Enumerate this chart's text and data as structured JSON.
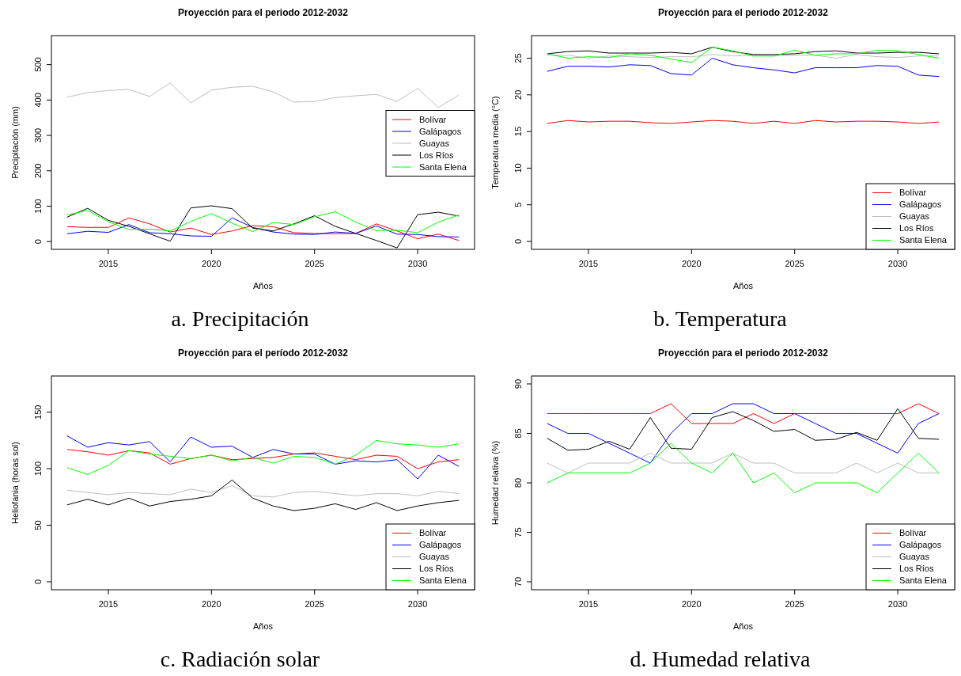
{
  "chart_data": [
    {
      "type": "line",
      "title": "Proyección para el periodo 2012-2032",
      "xlabel": "Años",
      "ylabel": "Precipitación (mm)",
      "annotations": [
        "a. Precipitación"
      ],
      "x": [
        2013,
        2014,
        2015,
        2016,
        2017,
        2018,
        2019,
        2020,
        2021,
        2022,
        2023,
        2024,
        2025,
        2026,
        2027,
        2028,
        2029,
        2030,
        2031,
        2032
      ],
      "xlim": [
        2012.24,
        2032.76
      ],
      "ylim": [
        -22,
        582
      ],
      "xticks": [
        2015,
        2020,
        2025,
        2030
      ],
      "yticks": [
        0,
        100,
        200,
        300,
        400,
        500
      ],
      "legend": "right",
      "series": [
        {
          "name": "Bolívar",
          "color": "#ff0000",
          "values": [
            42,
            40,
            40,
            67,
            50,
            27,
            38,
            20,
            30,
            45,
            42,
            25,
            23,
            22,
            23,
            50,
            30,
            8,
            21,
            3
          ]
        },
        {
          "name": "Galápagos",
          "color": "#0000ff",
          "values": [
            22,
            29,
            26,
            48,
            25,
            22,
            16,
            15,
            67,
            40,
            27,
            21,
            20,
            27,
            23,
            44,
            21,
            20,
            14,
            13
          ]
        },
        {
          "name": "Guayas",
          "color": "#bebebe",
          "values": [
            408,
            421,
            427,
            430,
            410,
            448,
            392,
            428,
            436,
            439,
            423,
            394,
            396,
            407,
            412,
            416,
            396,
            433,
            379,
            414
          ]
        },
        {
          "name": "Los Ríos",
          "color": "#000000",
          "values": [
            69,
            94,
            60,
            43,
            22,
            1,
            95,
            101,
            93,
            38,
            30,
            50,
            73,
            43,
            23,
            3,
            -18,
            76,
            83,
            72
          ]
        },
        {
          "name": "Santa Elena",
          "color": "#00ff00",
          "values": [
            75,
            88,
            56,
            34,
            35,
            30,
            57,
            79,
            52,
            28,
            54,
            48,
            70,
            84,
            55,
            31,
            32,
            25,
            55,
            75
          ]
        }
      ]
    },
    {
      "type": "line",
      "title": "Proyección para el periodo 2012-2032",
      "xlabel": "Años",
      "ylabel": "Temperatura media (°C)",
      "annotations": [
        "b. Temperatura"
      ],
      "x": [
        2013,
        2014,
        2015,
        2016,
        2017,
        2018,
        2019,
        2020,
        2021,
        2022,
        2023,
        2024,
        2025,
        2026,
        2027,
        2028,
        2029,
        2030,
        2031,
        2032
      ],
      "xlim": [
        2012.24,
        2032.76
      ],
      "ylim": [
        -1.08,
        28.08
      ],
      "xticks": [
        2015,
        2020,
        2025,
        2030
      ],
      "yticks": [
        0,
        5,
        10,
        15,
        20,
        25
      ],
      "legend": "bottom right",
      "series": [
        {
          "name": "Bolívar",
          "color": "#ff0000",
          "values": [
            16.1,
            16.5,
            16.3,
            16.4,
            16.4,
            16.2,
            16.1,
            16.3,
            16.5,
            16.4,
            16.1,
            16.4,
            16.1,
            16.5,
            16.3,
            16.4,
            16.4,
            16.3,
            16.1,
            16.3
          ]
        },
        {
          "name": "Galápagos",
          "color": "#0000ff",
          "values": [
            23.2,
            23.9,
            23.9,
            23.8,
            24.1,
            24.0,
            22.9,
            22.7,
            25.0,
            24.1,
            23.7,
            23.4,
            23.0,
            23.7,
            23.7,
            23.7,
            24.0,
            23.9,
            22.7,
            22.5
          ]
        },
        {
          "name": "Guayas",
          "color": "#bebebe",
          "values": [
            25.4,
            25.4,
            25.0,
            25.3,
            25.2,
            25.1,
            25.2,
            25.2,
            25.5,
            25.3,
            25.4,
            25.3,
            25.4,
            25.4,
            25.0,
            25.5,
            25.2,
            25.1,
            25.3,
            25.3
          ]
        },
        {
          "name": "Los Ríos",
          "color": "#000000",
          "values": [
            25.6,
            25.9,
            26.0,
            25.7,
            25.7,
            25.7,
            25.8,
            25.6,
            26.5,
            25.9,
            25.5,
            25.5,
            25.6,
            25.9,
            26.0,
            25.7,
            25.7,
            25.8,
            25.8,
            25.6
          ]
        },
        {
          "name": "Santa Elena",
          "color": "#00ff00",
          "values": [
            25.6,
            25.0,
            25.2,
            25.1,
            25.6,
            25.4,
            24.9,
            24.4,
            26.5,
            26.0,
            25.3,
            25.3,
            26.1,
            25.4,
            25.6,
            25.6,
            26.1,
            26.0,
            25.5,
            25.0
          ]
        }
      ]
    },
    {
      "type": "line",
      "title": "Proyección para el período 2012-2032",
      "xlabel": "Años",
      "ylabel": "Heliofania (horas sol)",
      "annotations": [
        "c. Radiación solar"
      ],
      "x": [
        2013,
        2014,
        2015,
        2016,
        2017,
        2018,
        2019,
        2020,
        2021,
        2022,
        2023,
        2024,
        2025,
        2026,
        2027,
        2028,
        2029,
        2030,
        2031,
        2032
      ],
      "xlim": [
        2012.24,
        2032.76
      ],
      "ylim": [
        -7,
        182
      ],
      "xticks": [
        2015,
        2020,
        2025,
        2030
      ],
      "yticks": [
        0,
        50,
        100,
        150
      ],
      "legend": "bottom right",
      "series": [
        {
          "name": "Bolívar",
          "color": "#ff0000",
          "values": [
            117,
            115,
            112,
            116,
            114,
            104,
            109,
            112,
            108,
            109,
            110,
            113,
            114,
            111,
            108,
            112,
            111,
            100,
            106,
            108
          ]
        },
        {
          "name": "Galápagos",
          "color": "#0000ff",
          "values": [
            129,
            119,
            123,
            121,
            124,
            106,
            128,
            119,
            120,
            110,
            117,
            113,
            113,
            104,
            107,
            106,
            108,
            91,
            112,
            102
          ]
        },
        {
          "name": "Guayas",
          "color": "#bebebe",
          "values": [
            81,
            79,
            77,
            79,
            78,
            77,
            82,
            79,
            85,
            76,
            75,
            79,
            80,
            78,
            76,
            78,
            78,
            76,
            80,
            78
          ]
        },
        {
          "name": "Los Ríos",
          "color": "#000000",
          "values": [
            68,
            73,
            68,
            74,
            67,
            71,
            73,
            76,
            90,
            74,
            67,
            63,
            65,
            69,
            64,
            70,
            63,
            67,
            70,
            72
          ]
        },
        {
          "name": "Santa Elena",
          "color": "#00ff00",
          "values": [
            101,
            95,
            103,
            116,
            113,
            111,
            109,
            112,
            107,
            110,
            105,
            111,
            110,
            104,
            112,
            125,
            122,
            121,
            119,
            122
          ]
        }
      ]
    },
    {
      "type": "line",
      "title": "Proyección para el periodo 2012-2032",
      "xlabel": "Años",
      "ylabel": "Humedad relativa (%)",
      "annotations": [
        "d. Humedad relativa"
      ],
      "x": [
        2013,
        2014,
        2015,
        2016,
        2017,
        2018,
        2019,
        2020,
        2021,
        2022,
        2023,
        2024,
        2025,
        2026,
        2027,
        2028,
        2029,
        2030,
        2031,
        2032
      ],
      "xlim": [
        2012.24,
        2032.76
      ],
      "ylim": [
        69.2,
        90.8
      ],
      "xticks": [
        2015,
        2020,
        2025,
        2030
      ],
      "yticks": [
        70,
        75,
        80,
        85,
        90
      ],
      "legend": "bottom right",
      "series": [
        {
          "name": "Bolívar",
          "color": "#ff0000",
          "values": [
            87,
            87,
            87,
            87,
            87,
            87,
            88,
            86,
            86,
            86,
            87,
            86,
            87,
            87,
            87,
            87,
            87,
            87,
            88,
            87
          ]
        },
        {
          "name": "Galápagos",
          "color": "#0000ff",
          "values": [
            86,
            85,
            85,
            84,
            83,
            82,
            85,
            87,
            87,
            88,
            88,
            87,
            87,
            86,
            85,
            85,
            84,
            83,
            86,
            87
          ]
        },
        {
          "name": "Guayas",
          "color": "#bebebe",
          "values": [
            82,
            81,
            82,
            82,
            82,
            83,
            82,
            82,
            82,
            83,
            82,
            82,
            81,
            81,
            81,
            82,
            81,
            82,
            81,
            81
          ]
        },
        {
          "name": "Los Ríos",
          "color": "#000000",
          "values": [
            84.5,
            83.3,
            83.4,
            84.2,
            83.4,
            86.6,
            83.5,
            83.4,
            86.6,
            87.2,
            86.3,
            85.2,
            85.4,
            84.3,
            84.4,
            85.1,
            84.3,
            87.5,
            84.5,
            84.4
          ]
        },
        {
          "name": "Santa Elena",
          "color": "#00ff00",
          "values": [
            80,
            81,
            81,
            81,
            81,
            82,
            84,
            82,
            81,
            83,
            80,
            81,
            79,
            80,
            80,
            80,
            79,
            81,
            83,
            81
          ]
        }
      ]
    }
  ]
}
